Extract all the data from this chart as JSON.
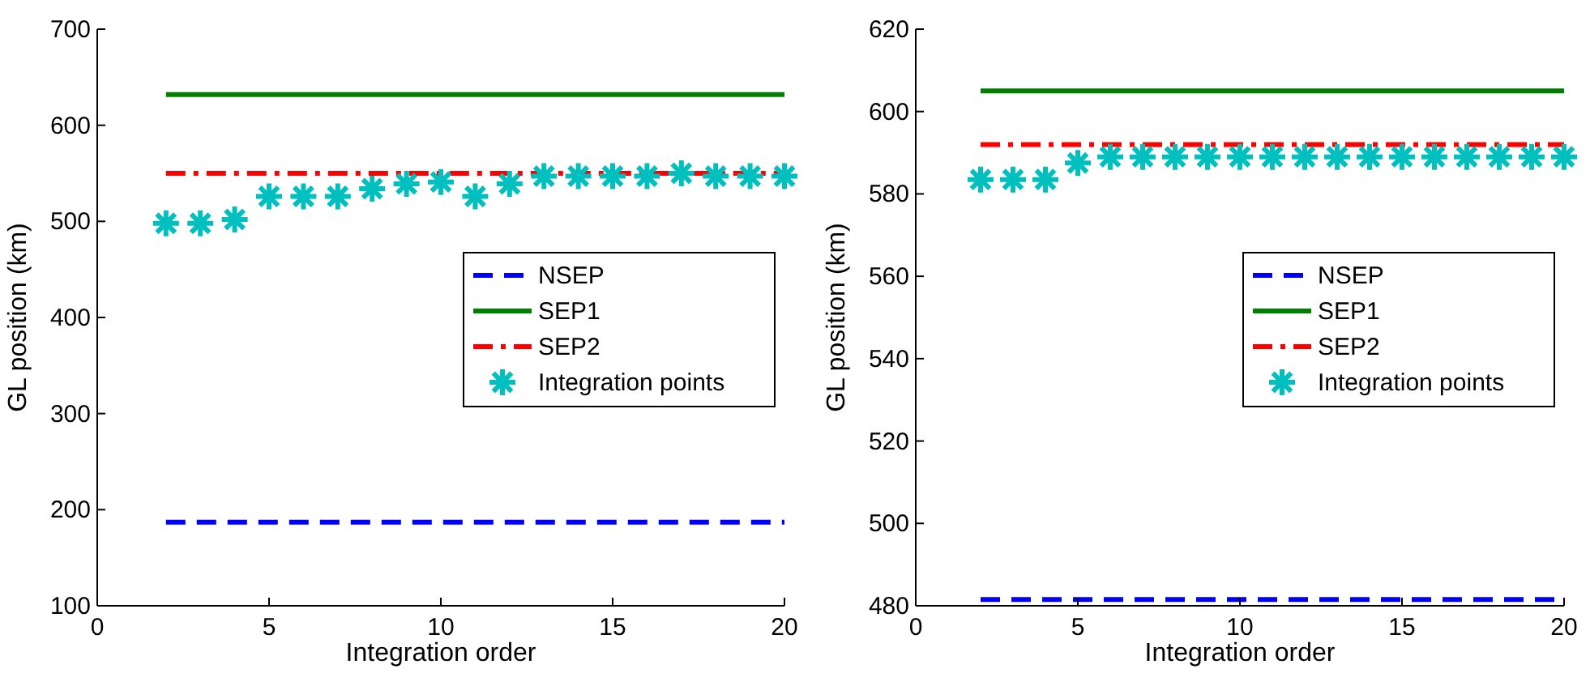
{
  "chart_data": [
    {
      "type": "line",
      "xlabel": "Integration order",
      "ylabel": "GL position (km)",
      "xlim": [
        0,
        20
      ],
      "xticks": [
        0,
        5,
        10,
        15,
        20
      ],
      "ylim": [
        100,
        700
      ],
      "yticks": [
        100,
        200,
        300,
        400,
        500,
        600,
        700
      ],
      "legend": "right",
      "grid": false,
      "series": [
        {
          "name": "NSEP",
          "color": "#0000ff",
          "line_style": "dashed",
          "marker": "none",
          "x": [
            2,
            20
          ],
          "values": [
            187,
            187
          ]
        },
        {
          "name": "SEP1",
          "color": "#008000",
          "line_style": "solid",
          "marker": "none",
          "x": [
            2,
            20
          ],
          "values": [
            632,
            632
          ]
        },
        {
          "name": "SEP2",
          "color": "#ff0000",
          "line_style": "dashdot",
          "marker": "none",
          "x": [
            2,
            20
          ],
          "values": [
            550,
            550
          ]
        },
        {
          "name": "Integration points",
          "type": "scatter",
          "color": "#00bfbf",
          "marker": "cross",
          "x": [
            2,
            3,
            4,
            5,
            6,
            7,
            8,
            9,
            10,
            11,
            12,
            13,
            14,
            15,
            16,
            17,
            18,
            19,
            20
          ],
          "values": [
            498,
            498,
            502,
            526,
            526,
            526,
            534,
            539,
            541,
            526,
            539,
            547,
            547,
            547,
            547,
            550,
            547,
            547,
            547
          ]
        }
      ]
    },
    {
      "type": "line",
      "xlabel": "Integration order",
      "ylabel": "GL position (km)",
      "xlim": [
        0,
        20
      ],
      "xticks": [
        0,
        5,
        10,
        15,
        20
      ],
      "ylim": [
        480,
        620
      ],
      "yticks": [
        480,
        500,
        520,
        540,
        560,
        580,
        600,
        620
      ],
      "legend": "right",
      "grid": false,
      "series": [
        {
          "name": "NSEP",
          "color": "#0000ff",
          "line_style": "dashed",
          "marker": "none",
          "x": [
            2,
            20
          ],
          "values": [
            481.5,
            481.5
          ]
        },
        {
          "name": "SEP1",
          "color": "#008000",
          "line_style": "solid",
          "marker": "none",
          "x": [
            2,
            20
          ],
          "values": [
            605,
            605
          ]
        },
        {
          "name": "SEP2",
          "color": "#ff0000",
          "line_style": "dashdot",
          "marker": "none",
          "x": [
            2,
            20
          ],
          "values": [
            592,
            592
          ]
        },
        {
          "name": "Integration points",
          "type": "scatter",
          "color": "#00bfbf",
          "marker": "cross",
          "x": [
            2,
            3,
            4,
            5,
            6,
            7,
            8,
            9,
            10,
            11,
            12,
            13,
            14,
            15,
            16,
            17,
            18,
            19,
            20
          ],
          "values": [
            583.5,
            583.5,
            583.5,
            587.5,
            589,
            589,
            589,
            589,
            589,
            589,
            589,
            589,
            589,
            589,
            589,
            589,
            589,
            589,
            589
          ]
        }
      ]
    }
  ]
}
